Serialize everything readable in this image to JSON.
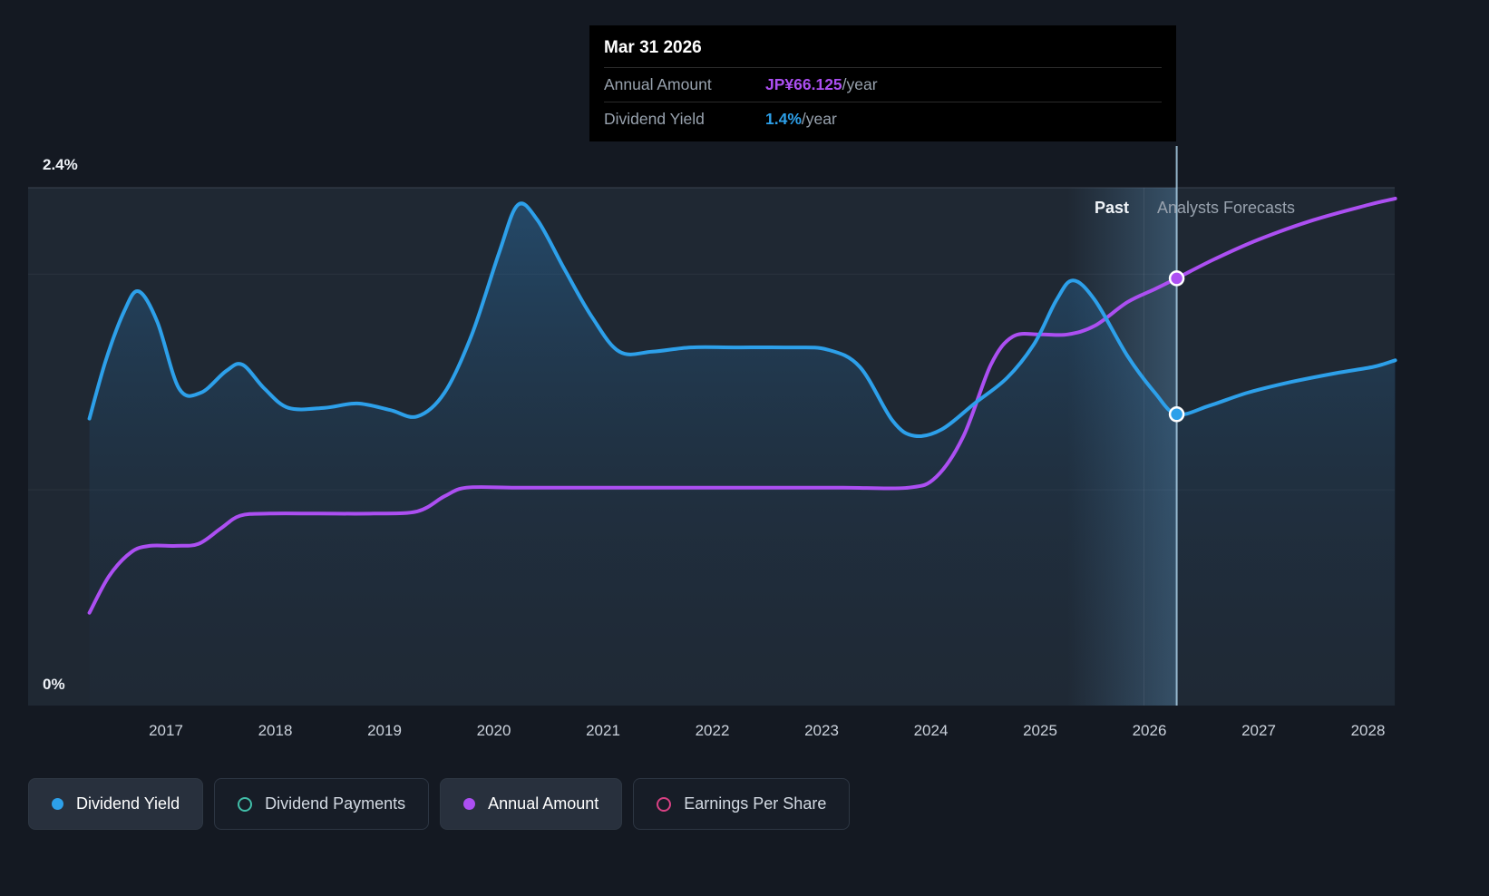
{
  "tooltip": {
    "date": "Mar 31 2026",
    "rows": [
      {
        "label": "Annual Amount",
        "value": "JP¥66.125",
        "suffix": "/year",
        "value_color": "#ac4ff2"
      },
      {
        "label": "Dividend Yield",
        "value": "1.4%",
        "suffix": "/year",
        "value_color": "#2da0ea"
      }
    ]
  },
  "legend": [
    {
      "label": "Dividend Yield",
      "marker": "filled",
      "color": "#2da0ea",
      "active": true
    },
    {
      "label": "Dividend Payments",
      "marker": "ring",
      "color": "#41bda8",
      "active": false
    },
    {
      "label": "Annual Amount",
      "marker": "filled",
      "color": "#ac4ff2",
      "active": true
    },
    {
      "label": "Earnings Per Share",
      "marker": "ring",
      "color": "#d84183",
      "active": false
    }
  ],
  "chart_data": {
    "type": "line",
    "labels": {
      "past": "Past",
      "forecast": "Analysts Forecasts"
    },
    "y_axis": {
      "min": 0,
      "max": 2.4,
      "max_label": "2.4%",
      "min_label": "0%",
      "gridlines": [
        2.4,
        2.0,
        1.0
      ]
    },
    "x_axis": {
      "ticks": [
        2017,
        2018,
        2019,
        2020,
        2021,
        2022,
        2023,
        2024,
        2025,
        2026,
        2027,
        2028
      ]
    },
    "x_domain": [
      2016.25,
      2028.25
    ],
    "today_year": 2025.95,
    "hover_band": [
      2025.25,
      2026.25
    ],
    "series": [
      {
        "name": "Dividend Yield",
        "color": "#2da0ea",
        "area": true,
        "points": [
          [
            2016.3,
            1.33
          ],
          [
            2016.45,
            1.6
          ],
          [
            2016.62,
            1.83
          ],
          [
            2016.75,
            1.92
          ],
          [
            2016.92,
            1.78
          ],
          [
            2017.12,
            1.47
          ],
          [
            2017.32,
            1.45
          ],
          [
            2017.55,
            1.55
          ],
          [
            2017.7,
            1.58
          ],
          [
            2017.9,
            1.47
          ],
          [
            2018.12,
            1.38
          ],
          [
            2018.45,
            1.38
          ],
          [
            2018.75,
            1.4
          ],
          [
            2019.05,
            1.37
          ],
          [
            2019.3,
            1.34
          ],
          [
            2019.55,
            1.45
          ],
          [
            2019.8,
            1.72
          ],
          [
            2020.05,
            2.1
          ],
          [
            2020.22,
            2.32
          ],
          [
            2020.4,
            2.25
          ],
          [
            2020.65,
            2.02
          ],
          [
            2020.9,
            1.8
          ],
          [
            2021.15,
            1.64
          ],
          [
            2021.45,
            1.64
          ],
          [
            2021.8,
            1.66
          ],
          [
            2022.2,
            1.66
          ],
          [
            2022.7,
            1.66
          ],
          [
            2023.05,
            1.65
          ],
          [
            2023.35,
            1.57
          ],
          [
            2023.65,
            1.32
          ],
          [
            2023.85,
            1.25
          ],
          [
            2024.1,
            1.28
          ],
          [
            2024.4,
            1.4
          ],
          [
            2024.7,
            1.52
          ],
          [
            2024.95,
            1.68
          ],
          [
            2025.15,
            1.88
          ],
          [
            2025.3,
            1.97
          ],
          [
            2025.5,
            1.88
          ],
          [
            2025.8,
            1.62
          ],
          [
            2026.05,
            1.45
          ],
          [
            2026.25,
            1.35
          ],
          [
            2026.55,
            1.39
          ],
          [
            2026.9,
            1.45
          ],
          [
            2027.3,
            1.5
          ],
          [
            2027.7,
            1.54
          ],
          [
            2028.05,
            1.57
          ],
          [
            2028.25,
            1.6
          ]
        ]
      },
      {
        "name": "Annual Amount",
        "color": "#ac4ff2",
        "area": false,
        "points": [
          [
            2016.3,
            0.43
          ],
          [
            2016.48,
            0.6
          ],
          [
            2016.68,
            0.71
          ],
          [
            2016.85,
            0.74
          ],
          [
            2017.1,
            0.74
          ],
          [
            2017.3,
            0.75
          ],
          [
            2017.5,
            0.82
          ],
          [
            2017.68,
            0.88
          ],
          [
            2017.95,
            0.89
          ],
          [
            2018.4,
            0.89
          ],
          [
            2018.9,
            0.89
          ],
          [
            2019.3,
            0.9
          ],
          [
            2019.55,
            0.97
          ],
          [
            2019.75,
            1.01
          ],
          [
            2020.2,
            1.01
          ],
          [
            2020.8,
            1.01
          ],
          [
            2021.4,
            1.01
          ],
          [
            2022.0,
            1.01
          ],
          [
            2022.6,
            1.01
          ],
          [
            2023.2,
            1.01
          ],
          [
            2023.8,
            1.01
          ],
          [
            2024.05,
            1.06
          ],
          [
            2024.3,
            1.25
          ],
          [
            2024.55,
            1.58
          ],
          [
            2024.75,
            1.71
          ],
          [
            2025.0,
            1.72
          ],
          [
            2025.25,
            1.72
          ],
          [
            2025.5,
            1.76
          ],
          [
            2025.8,
            1.87
          ],
          [
            2026.05,
            1.93
          ],
          [
            2026.25,
            1.98
          ],
          [
            2026.6,
            2.07
          ],
          [
            2027.0,
            2.16
          ],
          [
            2027.5,
            2.25
          ],
          [
            2028.0,
            2.32
          ],
          [
            2028.25,
            2.35
          ]
        ]
      }
    ],
    "markers": [
      {
        "series": "Annual Amount",
        "x": 2026.25,
        "y": 1.98,
        "color": "#ac4ff2"
      },
      {
        "series": "Dividend Yield",
        "x": 2026.25,
        "y": 1.35,
        "color": "#2da0ea"
      }
    ]
  }
}
